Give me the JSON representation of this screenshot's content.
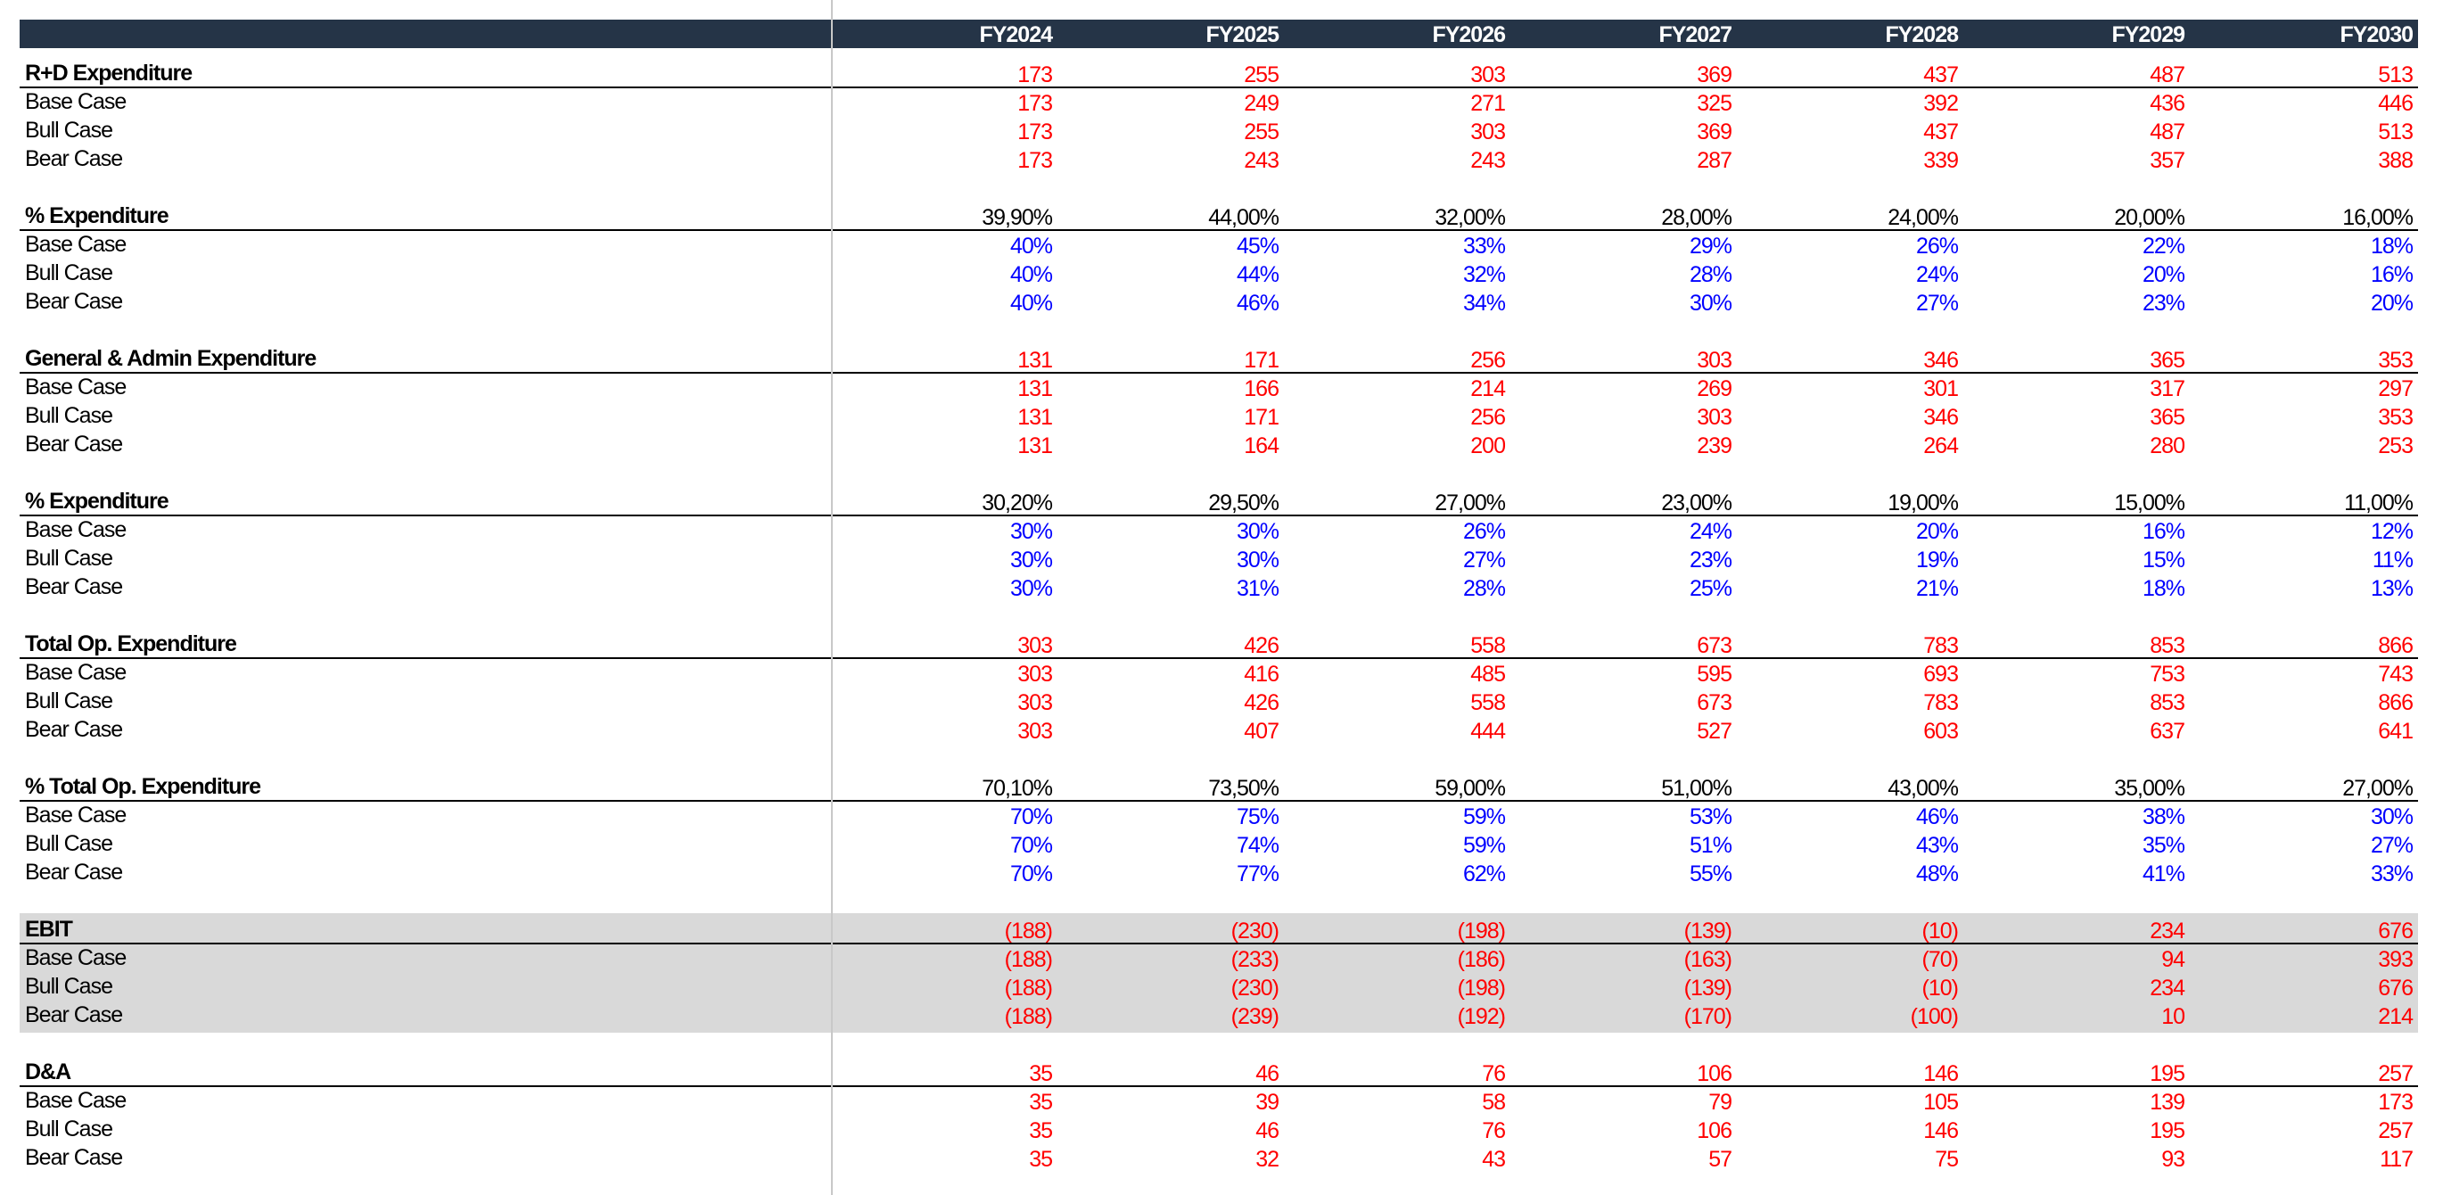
{
  "years": [
    "FY2024",
    "FY2025",
    "FY2026",
    "FY2027",
    "FY2028",
    "FY2029",
    "FY2030"
  ],
  "sections": [
    {
      "title": "R+D Expenditure",
      "kind": "amount",
      "highlight": false,
      "total": [
        "173",
        "255",
        "303",
        "369",
        "437",
        "487",
        "513"
      ],
      "cases": [
        {
          "label": "Base Case",
          "values": [
            "173",
            "249",
            "271",
            "325",
            "392",
            "436",
            "446"
          ]
        },
        {
          "label": "Bull Case",
          "values": [
            "173",
            "255",
            "303",
            "369",
            "437",
            "487",
            "513"
          ]
        },
        {
          "label": "Bear Case",
          "values": [
            "173",
            "243",
            "243",
            "287",
            "339",
            "357",
            "388"
          ]
        }
      ]
    },
    {
      "title": "% Expenditure",
      "kind": "percent",
      "highlight": false,
      "total": [
        "39,90%",
        "44,00%",
        "32,00%",
        "28,00%",
        "24,00%",
        "20,00%",
        "16,00%"
      ],
      "cases": [
        {
          "label": "Base Case",
          "values": [
            "40%",
            "45%",
            "33%",
            "29%",
            "26%",
            "22%",
            "18%"
          ]
        },
        {
          "label": "Bull Case",
          "values": [
            "40%",
            "44%",
            "32%",
            "28%",
            "24%",
            "20%",
            "16%"
          ]
        },
        {
          "label": "Bear Case",
          "values": [
            "40%",
            "46%",
            "34%",
            "30%",
            "27%",
            "23%",
            "20%"
          ]
        }
      ]
    },
    {
      "title": "General & Admin Expenditure",
      "kind": "amount",
      "highlight": false,
      "total": [
        "131",
        "171",
        "256",
        "303",
        "346",
        "365",
        "353"
      ],
      "cases": [
        {
          "label": "Base Case",
          "values": [
            "131",
            "166",
            "214",
            "269",
            "301",
            "317",
            "297"
          ]
        },
        {
          "label": "Bull Case",
          "values": [
            "131",
            "171",
            "256",
            "303",
            "346",
            "365",
            "353"
          ]
        },
        {
          "label": "Bear Case",
          "values": [
            "131",
            "164",
            "200",
            "239",
            "264",
            "280",
            "253"
          ]
        }
      ]
    },
    {
      "title": "% Expenditure",
      "kind": "percent",
      "highlight": false,
      "total": [
        "30,20%",
        "29,50%",
        "27,00%",
        "23,00%",
        "19,00%",
        "15,00%",
        "11,00%"
      ],
      "cases": [
        {
          "label": "Base Case",
          "values": [
            "30%",
            "30%",
            "26%",
            "24%",
            "20%",
            "16%",
            "12%"
          ]
        },
        {
          "label": "Bull Case",
          "values": [
            "30%",
            "30%",
            "27%",
            "23%",
            "19%",
            "15%",
            "11%"
          ]
        },
        {
          "label": "Bear Case",
          "values": [
            "30%",
            "31%",
            "28%",
            "25%",
            "21%",
            "18%",
            "13%"
          ]
        }
      ]
    },
    {
      "title": "Total Op. Expenditure",
      "kind": "amount",
      "highlight": false,
      "total": [
        "303",
        "426",
        "558",
        "673",
        "783",
        "853",
        "866"
      ],
      "cases": [
        {
          "label": "Base Case",
          "values": [
            "303",
            "416",
            "485",
            "595",
            "693",
            "753",
            "743"
          ]
        },
        {
          "label": "Bull Case",
          "values": [
            "303",
            "426",
            "558",
            "673",
            "783",
            "853",
            "866"
          ]
        },
        {
          "label": "Bear Case",
          "values": [
            "303",
            "407",
            "444",
            "527",
            "603",
            "637",
            "641"
          ]
        }
      ]
    },
    {
      "title": "% Total Op. Expenditure",
      "kind": "percent",
      "highlight": false,
      "total": [
        "70,10%",
        "73,50%",
        "59,00%",
        "51,00%",
        "43,00%",
        "35,00%",
        "27,00%"
      ],
      "cases": [
        {
          "label": "Base Case",
          "values": [
            "70%",
            "75%",
            "59%",
            "53%",
            "46%",
            "38%",
            "30%"
          ]
        },
        {
          "label": "Bull Case",
          "values": [
            "70%",
            "74%",
            "59%",
            "51%",
            "43%",
            "35%",
            "27%"
          ]
        },
        {
          "label": "Bear Case",
          "values": [
            "70%",
            "77%",
            "62%",
            "55%",
            "48%",
            "41%",
            "33%"
          ]
        }
      ]
    },
    {
      "title": "EBIT",
      "kind": "amount",
      "highlight": true,
      "total": [
        "(188)",
        "(230)",
        "(198)",
        "(139)",
        "(10)",
        "234",
        "676"
      ],
      "cases": [
        {
          "label": "Base Case",
          "values": [
            "(188)",
            "(233)",
            "(186)",
            "(163)",
            "(70)",
            "94",
            "393"
          ]
        },
        {
          "label": "Bull Case",
          "values": [
            "(188)",
            "(230)",
            "(198)",
            "(139)",
            "(10)",
            "234",
            "676"
          ]
        },
        {
          "label": "Bear Case",
          "values": [
            "(188)",
            "(239)",
            "(192)",
            "(170)",
            "(100)",
            "10",
            "214"
          ]
        }
      ]
    },
    {
      "title": "D&A",
      "kind": "amount",
      "highlight": false,
      "total": [
        "35",
        "46",
        "76",
        "106",
        "146",
        "195",
        "257"
      ],
      "cases": [
        {
          "label": "Base Case",
          "values": [
            "35",
            "39",
            "58",
            "79",
            "105",
            "139",
            "173"
          ]
        },
        {
          "label": "Bull Case",
          "values": [
            "35",
            "46",
            "76",
            "106",
            "146",
            "195",
            "257"
          ]
        },
        {
          "label": "Bear Case",
          "values": [
            "35",
            "32",
            "43",
            "57",
            "75",
            "93",
            "117"
          ]
        }
      ]
    }
  ],
  "colors": {
    "header_bg": "#253447",
    "header_text": "#ffffff",
    "amount_text": "#ff0000",
    "percent_case_text": "#0000ff",
    "percent_total_text": "#000000",
    "highlight_bg": "#d9d9d9"
  }
}
